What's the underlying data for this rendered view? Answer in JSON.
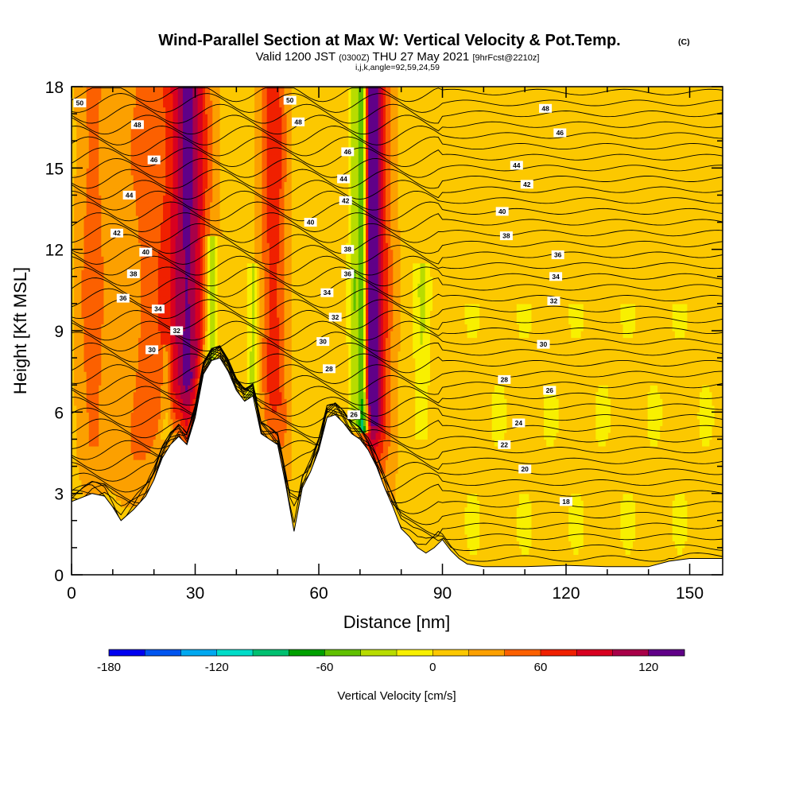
{
  "header": {
    "title": "Wind-Parallel Section at Max W: Vertical Velocity & Pot.Temp.",
    "title_mark": "(C)",
    "valid_prefix": "Valid 1200 JST",
    "valid_utc": "(0300Z)",
    "valid_date": "THU 27 May 2021",
    "forecast": "[9hrFcst@2210z]",
    "grid_info": "i,j,k,angle=92,59,24,59"
  },
  "chart_data": {
    "type": "heatmap",
    "title": "Wind-Parallel Section at Max W: Vertical Velocity & Pot.Temp.",
    "xlabel": "Distance [nm]",
    "ylabel": "Height [Kft MSL]",
    "xlim": [
      0,
      158
    ],
    "ylim": [
      0,
      18
    ],
    "x_ticks": [
      0,
      30,
      60,
      90,
      120,
      150
    ],
    "x_tick_labels": [
      "0",
      "30",
      "60",
      "90",
      "120",
      "150"
    ],
    "y_ticks": [
      0,
      3,
      6,
      9,
      12,
      15,
      18
    ],
    "y_tick_labels": [
      "0",
      "3",
      "6",
      "9",
      "12",
      "15",
      "18"
    ],
    "colorbar": {
      "label": "Vertical Velocity [cm/s]",
      "min": -180,
      "max": 140,
      "step": 20,
      "tick_values": [
        -180,
        -120,
        -60,
        0,
        60,
        120
      ],
      "tick_labels": [
        "-180",
        "-120",
        "-60",
        "0",
        "60",
        "120"
      ],
      "colors": [
        "#0000f0",
        "#0055f0",
        "#00a8f0",
        "#00dcc8",
        "#00c070",
        "#00a000",
        "#60c000",
        "#b8dc00",
        "#f8f000",
        "#fcc800",
        "#fca000",
        "#fc6000",
        "#f02000",
        "#d80020",
        "#a80048",
        "#600088"
      ]
    },
    "terrain": {
      "distance_nm": [
        0,
        5,
        8,
        10,
        12,
        15,
        18,
        20,
        22,
        24,
        26,
        28,
        30,
        32,
        34,
        36,
        38,
        40,
        42,
        44,
        46,
        48,
        50,
        52,
        54,
        56,
        58,
        60,
        62,
        64,
        66,
        68,
        70,
        72,
        74,
        76,
        78,
        80,
        82,
        84,
        86,
        88,
        90,
        92,
        94,
        96,
        100,
        110,
        120,
        130,
        140,
        145,
        150,
        158
      ],
      "height_kft": [
        2.7,
        3.0,
        2.9,
        2.5,
        2.0,
        2.4,
        2.9,
        3.5,
        4.3,
        4.8,
        5.1,
        4.8,
        5.8,
        7.4,
        7.9,
        8.0,
        7.5,
        6.8,
        6.4,
        6.6,
        5.2,
        5.0,
        4.8,
        3.3,
        1.6,
        3.2,
        3.8,
        4.6,
        5.8,
        5.9,
        5.6,
        5.2,
        5.0,
        4.6,
        4.0,
        3.2,
        2.5,
        1.7,
        1.4,
        1.0,
        0.8,
        1.0,
        1.3,
        0.9,
        0.6,
        0.4,
        0.3,
        0.3,
        0.35,
        0.3,
        0.3,
        0.5,
        0.6,
        0.6
      ]
    },
    "theta_contour_labels": [
      {
        "value": "50",
        "x": 2.0,
        "y": 17.4
      },
      {
        "value": "48",
        "x": 16.0,
        "y": 16.6
      },
      {
        "value": "46",
        "x": 20.0,
        "y": 15.3
      },
      {
        "value": "44",
        "x": 14.0,
        "y": 14.0
      },
      {
        "value": "42",
        "x": 11.0,
        "y": 12.6
      },
      {
        "value": "40",
        "x": 18.0,
        "y": 11.9
      },
      {
        "value": "38",
        "x": 15.0,
        "y": 11.1
      },
      {
        "value": "36",
        "x": 12.5,
        "y": 10.2
      },
      {
        "value": "34",
        "x": 21.0,
        "y": 9.8
      },
      {
        "value": "32",
        "x": 25.5,
        "y": 9.0
      },
      {
        "value": "30",
        "x": 19.5,
        "y": 8.3
      },
      {
        "value": "50",
        "x": 53.0,
        "y": 17.5
      },
      {
        "value": "48",
        "x": 55.0,
        "y": 16.7
      },
      {
        "value": "46",
        "x": 67.0,
        "y": 15.6
      },
      {
        "value": "44",
        "x": 66.0,
        "y": 14.6
      },
      {
        "value": "42",
        "x": 66.5,
        "y": 13.8
      },
      {
        "value": "40",
        "x": 58.0,
        "y": 13.0
      },
      {
        "value": "38",
        "x": 67.0,
        "y": 12.0
      },
      {
        "value": "36",
        "x": 67.0,
        "y": 11.1
      },
      {
        "value": "34",
        "x": 62.0,
        "y": 10.4
      },
      {
        "value": "32",
        "x": 64.0,
        "y": 9.5
      },
      {
        "value": "30",
        "x": 61.0,
        "y": 8.6
      },
      {
        "value": "28",
        "x": 62.5,
        "y": 7.6
      },
      {
        "value": "26",
        "x": 68.5,
        "y": 5.9
      },
      {
        "value": "48",
        "x": 115.0,
        "y": 17.2
      },
      {
        "value": "46",
        "x": 118.5,
        "y": 16.3
      },
      {
        "value": "44",
        "x": 108.0,
        "y": 15.1
      },
      {
        "value": "42",
        "x": 110.5,
        "y": 14.4
      },
      {
        "value": "40",
        "x": 104.5,
        "y": 13.4
      },
      {
        "value": "38",
        "x": 105.5,
        "y": 12.5
      },
      {
        "value": "36",
        "x": 118.0,
        "y": 11.8
      },
      {
        "value": "34",
        "x": 117.5,
        "y": 11.0
      },
      {
        "value": "32",
        "x": 117.0,
        "y": 10.1
      },
      {
        "value": "30",
        "x": 114.5,
        "y": 8.5
      },
      {
        "value": "28",
        "x": 105.0,
        "y": 7.2
      },
      {
        "value": "26",
        "x": 116.0,
        "y": 6.8
      },
      {
        "value": "24",
        "x": 108.5,
        "y": 5.6
      },
      {
        "value": "22",
        "x": 105.0,
        "y": 4.8
      },
      {
        "value": "20",
        "x": 110.0,
        "y": 3.9
      },
      {
        "value": "18",
        "x": 120.0,
        "y": 2.7
      }
    ],
    "updraft_bands": [
      {
        "x": 22.0,
        "top": 18.0,
        "half_width": 7.0,
        "strength": 40
      },
      {
        "x": 28.5,
        "top": 18.0,
        "half_width": 3.0,
        "strength": 85
      },
      {
        "x": 49.0,
        "top": 18.0,
        "half_width": 2.2,
        "strength": 60
      },
      {
        "x": 72.5,
        "top": 18.0,
        "half_width": 1.6,
        "strength": 120
      },
      {
        "x": 74.5,
        "top": 18.0,
        "half_width": 2.5,
        "strength": 55
      },
      {
        "x": 5.0,
        "top": 18.0,
        "half_width": 2.5,
        "strength": 35
      }
    ],
    "downdraft_bands": [
      {
        "x": 70.8,
        "top": 18.0,
        "bottom": 5.2,
        "half_width": 0.9,
        "strength": -140
      },
      {
        "x": 68.5,
        "top": 18.0,
        "bottom": 5.5,
        "half_width": 0.9,
        "strength": -50
      },
      {
        "x": 34.0,
        "top": 12.5,
        "bottom": 7.8,
        "half_width": 1.0,
        "strength": -60
      },
      {
        "x": 44.0,
        "top": 11.5,
        "bottom": 6.3,
        "half_width": 1.0,
        "strength": -40
      },
      {
        "x": 23.0,
        "top": 8.5,
        "bottom": 4.9,
        "half_width": 1.0,
        "strength": -30
      },
      {
        "x": 85.0,
        "top": 11.5,
        "bottom": 5.0,
        "half_width": 1.4,
        "strength": -30
      }
    ]
  }
}
